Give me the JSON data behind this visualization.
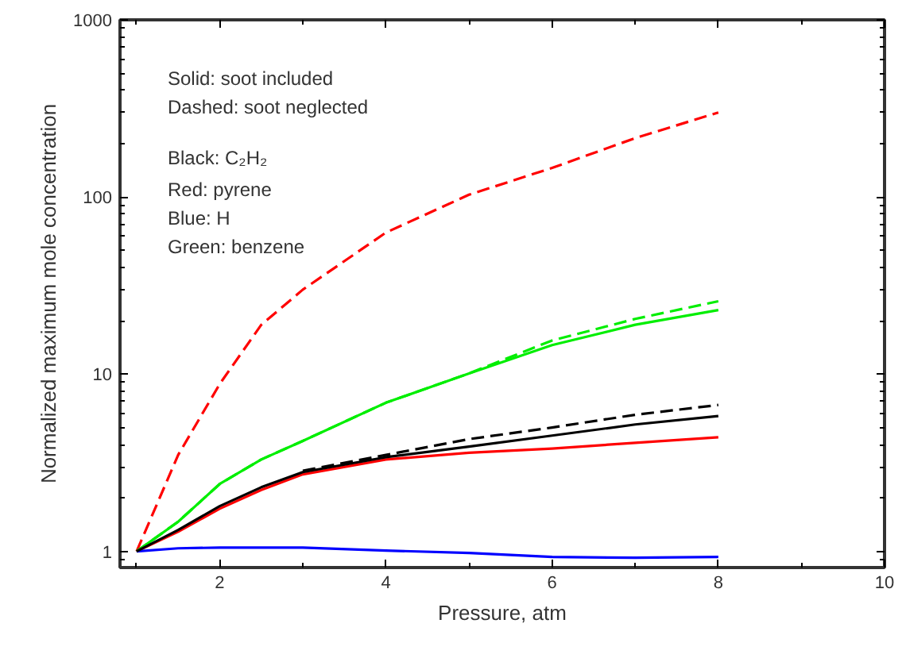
{
  "chart_data": {
    "type": "line",
    "xlabel": "Pressure, atm",
    "ylabel": "Normalized maximum mole concentration",
    "log": "y",
    "grid": false,
    "xlim": [
      0.8,
      10
    ],
    "xticks": [
      2,
      4,
      6,
      8,
      10
    ],
    "ylim": [
      0.81,
      1000
    ],
    "yticks": [
      1,
      10,
      100,
      1000
    ],
    "x": [
      1,
      1.5,
      2,
      2.5,
      3,
      4,
      5,
      6,
      7,
      8
    ],
    "annotations": [
      "Solid: soot included",
      "Dashed: soot neglected",
      "Black: C₂H₂",
      "Red: pyrene",
      "Blue: H",
      "Green: benzene"
    ],
    "series": [
      {
        "color": "#ff0000",
        "line_style": "dashed",
        "values": [
          1,
          3.5,
          8.8,
          19,
          30,
          63,
          103,
          146,
          215,
          300
        ]
      },
      {
        "color": "#00ee00",
        "line_style": "dashed",
        "values": [
          1,
          1.47,
          2.4,
          3.3,
          4.2,
          6.9,
          10.1,
          15.5,
          20.5,
          25.8
        ]
      },
      {
        "color": "#00ee00",
        "line_style": "solid",
        "values": [
          1,
          1.47,
          2.4,
          3.3,
          4.2,
          6.9,
          10.1,
          14.6,
          19,
          23
        ]
      },
      {
        "color": "#000000",
        "line_style": "dashed",
        "values": [
          null,
          null,
          null,
          null,
          2.85,
          3.5,
          4.3,
          5.0,
          5.9,
          6.7
        ]
      },
      {
        "color": "#ff0000",
        "line_style": "solid",
        "values": [
          1,
          1.29,
          1.74,
          2.22,
          2.72,
          3.3,
          3.6,
          3.8,
          4.1,
          4.4
        ]
      },
      {
        "color": "#0000ff",
        "line_style": "solid",
        "values": [
          1,
          1.04,
          1.05,
          1.05,
          1.05,
          1.01,
          0.98,
          0.93,
          0.92,
          0.93
        ]
      },
      {
        "color": "#000000",
        "line_style": "solid",
        "values": [
          1,
          1.32,
          1.8,
          2.3,
          2.8,
          3.4,
          3.9,
          4.5,
          5.2,
          5.8
        ]
      }
    ]
  }
}
